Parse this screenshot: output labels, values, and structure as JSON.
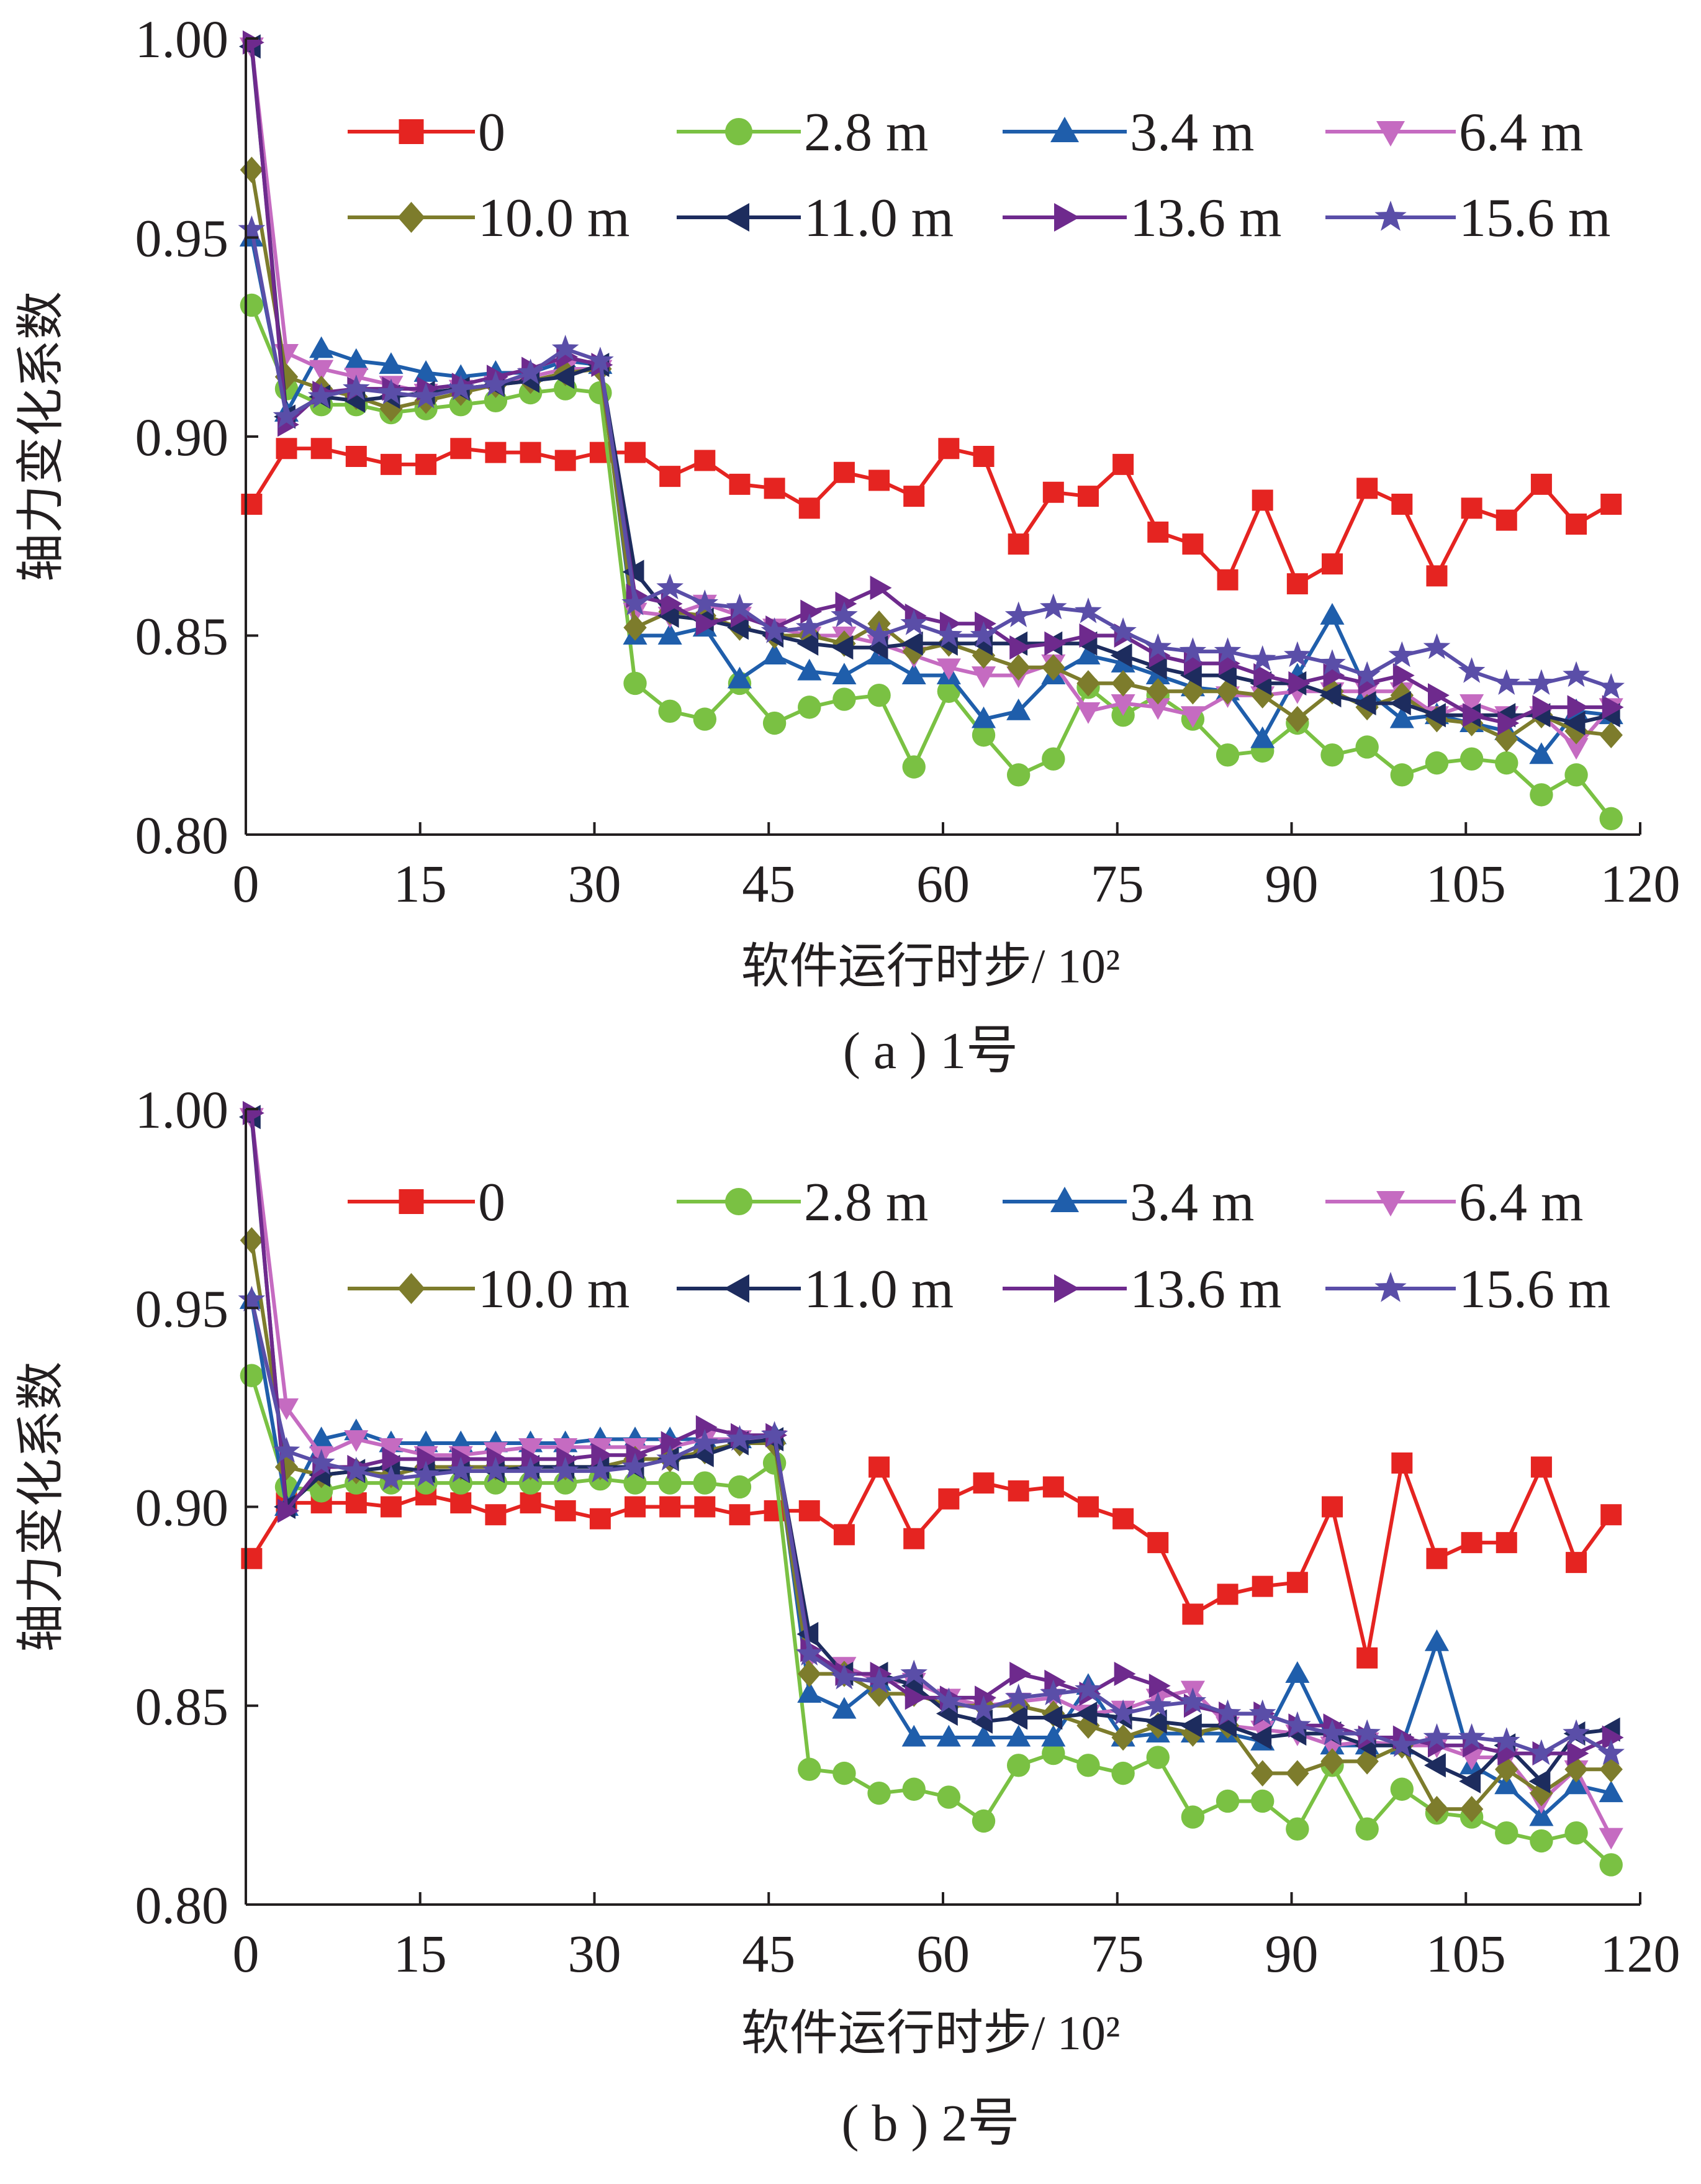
{
  "figure": {
    "captions": [
      "( a ) 1号",
      "( b ) 2号"
    ]
  },
  "legend_series": [
    {
      "name": "0",
      "color": "#e52421",
      "marker": "square"
    },
    {
      "name": "2.8 m",
      "color": "#7ac143",
      "marker": "circle"
    },
    {
      "name": "3.4 m",
      "color": "#1f5eab",
      "marker": "triangle-up"
    },
    {
      "name": "6.4 m",
      "color": "#c56bc1",
      "marker": "triangle-down"
    },
    {
      "name": "10.0 m",
      "color": "#7d7c2c",
      "marker": "diamond"
    },
    {
      "name": "11.0 m",
      "color": "#1d2c5e",
      "marker": "triangle-left"
    },
    {
      "name": "13.6 m",
      "color": "#6e2a8d",
      "marker": "triangle-right"
    },
    {
      "name": "15.6 m",
      "color": "#5a4ea8",
      "marker": "star"
    }
  ],
  "chart_data": [
    {
      "type": "line",
      "caption": "( a ) 1号",
      "xlabel": "软件运行时步/ 10²",
      "ylabel": "轴力变化系数",
      "xlim": [
        0,
        120
      ],
      "ylim": [
        0.8,
        1.0
      ],
      "xticks": [
        0,
        15,
        30,
        45,
        60,
        75,
        90,
        105,
        120
      ],
      "yticks": [
        "0.80",
        "0.85",
        "0.90",
        "0.95",
        "1.00"
      ],
      "x": [
        0.5,
        3.5,
        6.5,
        9.5,
        12.5,
        15.5,
        18.5,
        21.5,
        24.5,
        27.5,
        30.5,
        33.5,
        36.5,
        39.5,
        42.5,
        45.5,
        48.5,
        51.5,
        54.5,
        57.5,
        60.5,
        63.5,
        66.5,
        69.5,
        72.5,
        75.5,
        78.5,
        81.5,
        84.5,
        87.5,
        90.5,
        93.5,
        96.5,
        99.5,
        102.5,
        105.5,
        108.5,
        111.5,
        114.5,
        117.5
      ],
      "series": [
        {
          "name": "0",
          "values": [
            0.883,
            0.897,
            0.897,
            0.895,
            0.893,
            0.893,
            0.897,
            0.896,
            0.896,
            0.894,
            0.896,
            0.896,
            0.89,
            0.894,
            0.888,
            0.887,
            0.882,
            0.891,
            0.889,
            0.885,
            0.897,
            0.895,
            0.873,
            0.886,
            0.885,
            0.893,
            0.876,
            0.873,
            0.864,
            0.884,
            0.863,
            0.868,
            0.887,
            0.883,
            0.865,
            0.882,
            0.879,
            0.888,
            0.878,
            0.883
          ]
        },
        {
          "name": "2.8 m",
          "values": [
            0.933,
            0.912,
            0.908,
            0.908,
            0.906,
            0.907,
            0.908,
            0.909,
            0.911,
            0.912,
            0.911,
            0.838,
            0.831,
            0.829,
            0.838,
            0.828,
            0.832,
            0.834,
            0.835,
            0.817,
            0.836,
            0.825,
            0.815,
            0.819,
            0.837,
            0.83,
            0.835,
            0.829,
            0.82,
            0.821,
            0.828,
            0.82,
            0.822,
            0.815,
            0.818,
            0.819,
            0.818,
            0.81,
            0.815,
            0.804
          ]
        },
        {
          "name": "3.4 m",
          "values": [
            0.95,
            0.906,
            0.922,
            0.919,
            0.918,
            0.916,
            0.915,
            0.916,
            0.916,
            0.919,
            0.918,
            0.85,
            0.85,
            0.852,
            0.839,
            0.845,
            0.841,
            0.84,
            0.845,
            0.84,
            0.84,
            0.829,
            0.831,
            0.84,
            0.845,
            0.843,
            0.84,
            0.837,
            0.836,
            0.824,
            0.84,
            0.855,
            0.836,
            0.829,
            0.83,
            0.828,
            0.826,
            0.82,
            0.831,
            0.83
          ]
        },
        {
          "name": "6.4 m",
          "values": [
            0.998,
            0.921,
            0.917,
            0.915,
            0.913,
            0.911,
            0.912,
            0.913,
            0.915,
            0.917,
            0.917,
            0.856,
            0.855,
            0.858,
            0.855,
            0.852,
            0.85,
            0.85,
            0.848,
            0.845,
            0.842,
            0.84,
            0.84,
            0.843,
            0.831,
            0.833,
            0.832,
            0.83,
            0.835,
            0.835,
            0.836,
            0.836,
            0.836,
            0.836,
            0.83,
            0.833,
            0.83,
            0.83,
            0.822,
            0.832
          ]
        },
        {
          "name": "10.0 m",
          "values": [
            0.967,
            0.915,
            0.912,
            0.91,
            0.907,
            0.909,
            0.911,
            0.913,
            0.914,
            0.916,
            0.917,
            0.852,
            0.856,
            0.855,
            0.852,
            0.85,
            0.85,
            0.848,
            0.853,
            0.846,
            0.848,
            0.845,
            0.842,
            0.842,
            0.838,
            0.838,
            0.836,
            0.836,
            0.836,
            0.835,
            0.829,
            0.836,
            0.832,
            0.835,
            0.829,
            0.828,
            0.824,
            0.83,
            0.826,
            0.825
          ]
        },
        {
          "name": "11.0 m",
          "values": [
            0.998,
            0.905,
            0.91,
            0.909,
            0.91,
            0.911,
            0.912,
            0.913,
            0.914,
            0.915,
            0.918,
            0.866,
            0.855,
            0.854,
            0.852,
            0.85,
            0.848,
            0.847,
            0.847,
            0.848,
            0.848,
            0.848,
            0.848,
            0.848,
            0.848,
            0.845,
            0.842,
            0.84,
            0.84,
            0.838,
            0.838,
            0.835,
            0.833,
            0.833,
            0.83,
            0.83,
            0.83,
            0.83,
            0.828,
            0.83
          ]
        },
        {
          "name": "13.6 m",
          "values": [
            0.999,
            0.903,
            0.911,
            0.912,
            0.912,
            0.912,
            0.913,
            0.915,
            0.917,
            0.92,
            0.918,
            0.86,
            0.858,
            0.853,
            0.855,
            0.852,
            0.856,
            0.858,
            0.862,
            0.855,
            0.853,
            0.853,
            0.847,
            0.848,
            0.85,
            0.85,
            0.845,
            0.843,
            0.843,
            0.84,
            0.838,
            0.84,
            0.838,
            0.84,
            0.835,
            0.83,
            0.828,
            0.832,
            0.832,
            0.832
          ]
        },
        {
          "name": "15.6 m",
          "values": [
            0.952,
            0.905,
            0.91,
            0.912,
            0.911,
            0.91,
            0.912,
            0.913,
            0.916,
            0.922,
            0.919,
            0.858,
            0.862,
            0.858,
            0.857,
            0.851,
            0.852,
            0.855,
            0.85,
            0.853,
            0.85,
            0.85,
            0.855,
            0.857,
            0.856,
            0.851,
            0.847,
            0.846,
            0.846,
            0.844,
            0.845,
            0.843,
            0.84,
            0.845,
            0.847,
            0.841,
            0.838,
            0.838,
            0.84,
            0.837
          ]
        }
      ]
    },
    {
      "type": "line",
      "caption": "( b ) 2号",
      "xlabel": "软件运行时步/ 10²",
      "ylabel": "轴力变化系数",
      "xlim": [
        0,
        120
      ],
      "ylim": [
        0.8,
        1.0
      ],
      "xticks": [
        0,
        15,
        30,
        45,
        60,
        75,
        90,
        105,
        120
      ],
      "yticks": [
        "0.80",
        "0.85",
        "0.90",
        "0.95",
        "1.00"
      ],
      "x": [
        0.5,
        3.5,
        6.5,
        9.5,
        12.5,
        15.5,
        18.5,
        21.5,
        24.5,
        27.5,
        30.5,
        33.5,
        36.5,
        39.5,
        42.5,
        45.5,
        48.5,
        51.5,
        54.5,
        57.5,
        60.5,
        63.5,
        66.5,
        69.5,
        72.5,
        75.5,
        78.5,
        81.5,
        84.5,
        87.5,
        90.5,
        93.5,
        96.5,
        99.5,
        102.5,
        105.5,
        108.5,
        111.5,
        114.5,
        117.5
      ],
      "series": [
        {
          "name": "0",
          "values": [
            0.887,
            0.901,
            0.901,
            0.901,
            0.9,
            0.903,
            0.901,
            0.898,
            0.901,
            0.899,
            0.897,
            0.9,
            0.9,
            0.9,
            0.898,
            0.899,
            0.899,
            0.893,
            0.91,
            0.892,
            0.902,
            0.906,
            0.904,
            0.905,
            0.9,
            0.897,
            0.891,
            0.873,
            0.878,
            0.88,
            0.881,
            0.9,
            0.862,
            0.911,
            0.887,
            0.891,
            0.891,
            0.91,
            0.886,
            0.898
          ]
        },
        {
          "name": "2.8 m",
          "values": [
            0.933,
            0.905,
            0.904,
            0.906,
            0.906,
            0.906,
            0.906,
            0.906,
            0.906,
            0.906,
            0.907,
            0.906,
            0.906,
            0.906,
            0.905,
            0.911,
            0.834,
            0.833,
            0.828,
            0.829,
            0.827,
            0.821,
            0.835,
            0.838,
            0.835,
            0.833,
            0.837,
            0.822,
            0.826,
            0.826,
            0.819,
            0.835,
            0.819,
            0.829,
            0.823,
            0.822,
            0.818,
            0.816,
            0.818,
            0.81
          ]
        },
        {
          "name": "3.4 m",
          "values": [
            0.952,
            0.9,
            0.917,
            0.919,
            0.916,
            0.916,
            0.916,
            0.916,
            0.916,
            0.916,
            0.917,
            0.917,
            0.917,
            0.917,
            0.917,
            0.918,
            0.853,
            0.849,
            0.856,
            0.842,
            0.842,
            0.842,
            0.842,
            0.842,
            0.855,
            0.842,
            0.843,
            0.843,
            0.843,
            0.841,
            0.858,
            0.84,
            0.84,
            0.84,
            0.866,
            0.835,
            0.83,
            0.822,
            0.83,
            0.828
          ]
        },
        {
          "name": "6.4 m",
          "values": [
            0.998,
            0.925,
            0.913,
            0.917,
            0.915,
            0.913,
            0.913,
            0.914,
            0.915,
            0.915,
            0.915,
            0.915,
            0.915,
            0.917,
            0.917,
            0.917,
            0.862,
            0.86,
            0.856,
            0.856,
            0.852,
            0.85,
            0.851,
            0.852,
            0.848,
            0.849,
            0.852,
            0.854,
            0.845,
            0.844,
            0.843,
            0.84,
            0.841,
            0.84,
            0.84,
            0.837,
            0.837,
            0.826,
            0.834,
            0.817
          ]
        },
        {
          "name": "10.0 m",
          "values": [
            0.967,
            0.91,
            0.908,
            0.909,
            0.908,
            0.91,
            0.91,
            0.91,
            0.91,
            0.91,
            0.91,
            0.912,
            0.912,
            0.914,
            0.916,
            0.916,
            0.858,
            0.858,
            0.853,
            0.853,
            0.85,
            0.85,
            0.85,
            0.848,
            0.845,
            0.842,
            0.845,
            0.843,
            0.845,
            0.833,
            0.833,
            0.836,
            0.836,
            0.84,
            0.824,
            0.824,
            0.834,
            0.828,
            0.834,
            0.834
          ]
        },
        {
          "name": "11.0 m",
          "values": [
            0.998,
            0.9,
            0.908,
            0.909,
            0.91,
            0.909,
            0.909,
            0.909,
            0.91,
            0.91,
            0.91,
            0.91,
            0.912,
            0.913,
            0.916,
            0.917,
            0.868,
            0.858,
            0.858,
            0.855,
            0.848,
            0.846,
            0.847,
            0.847,
            0.848,
            0.847,
            0.846,
            0.845,
            0.845,
            0.842,
            0.843,
            0.843,
            0.84,
            0.84,
            0.835,
            0.831,
            0.84,
            0.831,
            0.843,
            0.844
          ]
        },
        {
          "name": "13.6 m",
          "values": [
            0.999,
            0.899,
            0.91,
            0.91,
            0.912,
            0.912,
            0.912,
            0.912,
            0.912,
            0.912,
            0.913,
            0.913,
            0.916,
            0.92,
            0.918,
            0.918,
            0.864,
            0.858,
            0.858,
            0.852,
            0.852,
            0.852,
            0.858,
            0.856,
            0.853,
            0.858,
            0.855,
            0.85,
            0.848,
            0.848,
            0.845,
            0.845,
            0.842,
            0.842,
            0.84,
            0.84,
            0.838,
            0.838,
            0.838,
            0.842
          ]
        },
        {
          "name": "15.6 m",
          "values": [
            0.952,
            0.914,
            0.911,
            0.909,
            0.907,
            0.908,
            0.909,
            0.909,
            0.909,
            0.909,
            0.909,
            0.91,
            0.912,
            0.916,
            0.917,
            0.918,
            0.863,
            0.857,
            0.856,
            0.858,
            0.851,
            0.849,
            0.852,
            0.853,
            0.854,
            0.848,
            0.85,
            0.851,
            0.848,
            0.848,
            0.845,
            0.843,
            0.843,
            0.84,
            0.842,
            0.842,
            0.841,
            0.838,
            0.843,
            0.838
          ]
        }
      ]
    }
  ]
}
